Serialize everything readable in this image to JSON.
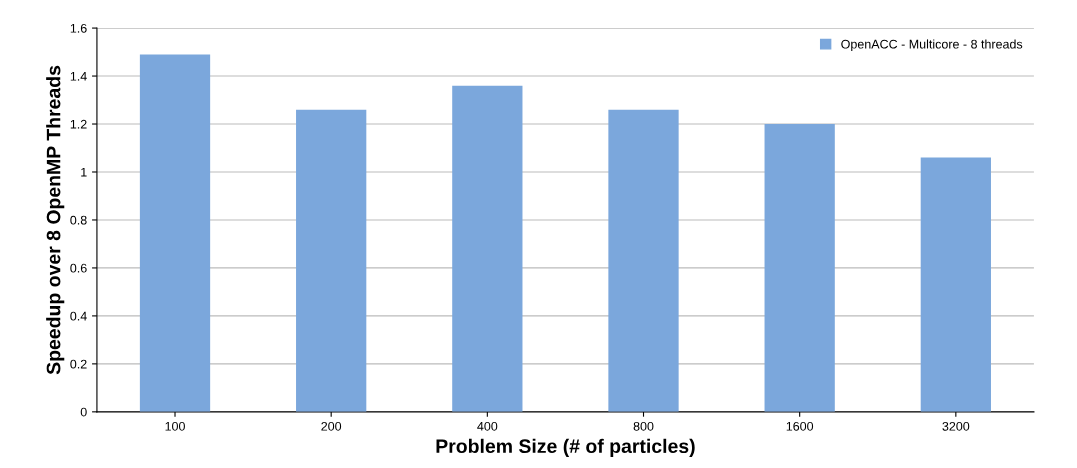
{
  "chart_data": {
    "type": "bar",
    "categories": [
      "100",
      "200",
      "400",
      "800",
      "1600",
      "3200"
    ],
    "series": [
      {
        "name": "OpenACC - Multicore - 8 threads",
        "color": "#7ba7dc",
        "values": [
          1.49,
          1.26,
          1.36,
          1.26,
          1.2,
          1.06
        ]
      }
    ],
    "xlabel": "Problem Size (# of particles)",
    "ylabel": "Speedup over 8 OpenMP Threads",
    "ylim": [
      0,
      1.6
    ],
    "yticks": [
      0,
      0.2,
      0.4,
      0.6,
      0.8,
      1,
      1.2,
      1.4,
      1.6
    ],
    "grid": "y",
    "legend": "top right"
  }
}
